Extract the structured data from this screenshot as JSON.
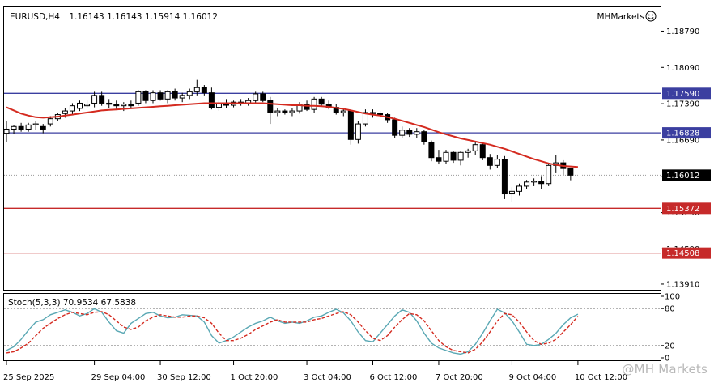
{
  "header": {
    "symbol": "EURUSD,H4",
    "ohlc": "1.16143 1.16143 1.15914 1.16012",
    "brand": "MHMarkets"
  },
  "watermark": "@MH Markets",
  "chart_data": [
    {
      "type": "candlestick",
      "title": "EURUSD,H4",
      "ylim": [
        1.138,
        1.1925
      ],
      "y_ticks": [
        "1.18790",
        "1.18090",
        "1.17390",
        "1.16690",
        "1.15990",
        "1.15290",
        "1.14590",
        "1.13910"
      ],
      "y_tick_values": [
        1.1879,
        1.1809,
        1.1739,
        1.1669,
        1.1599,
        1.1529,
        1.1459,
        1.1391
      ],
      "x_labels": [
        "25 Sep 2025",
        "29 Sep 04:00",
        "30 Sep 12:00",
        "1 Oct 20:00",
        "3 Oct 04:00",
        "6 Oct 12:00",
        "7 Oct 20:00",
        "9 Oct 04:00",
        "10 Oct 12:00"
      ],
      "x_label_bars": [
        0,
        12,
        21,
        31,
        41,
        50,
        59,
        69,
        78
      ],
      "candles": [
        [
          1.1682,
          1.1705,
          1.1665,
          1.169
        ],
        [
          1.169,
          1.1698,
          1.168,
          1.1695
        ],
        [
          1.1695,
          1.1702,
          1.1685,
          1.169
        ],
        [
          1.169,
          1.1702,
          1.1685,
          1.1698
        ],
        [
          1.1698,
          1.1705,
          1.1688,
          1.17
        ],
        [
          1.1695,
          1.17,
          1.1682,
          1.169
        ],
        [
          1.17,
          1.1715,
          1.1695,
          1.171
        ],
        [
          1.171,
          1.1722,
          1.1705,
          1.1718
        ],
        [
          1.172,
          1.173,
          1.1712,
          1.1725
        ],
        [
          1.1725,
          1.174,
          1.1718,
          1.1735
        ],
        [
          1.173,
          1.1745,
          1.1725,
          1.174
        ],
        [
          1.1735,
          1.1745,
          1.173,
          1.1738
        ],
        [
          1.174,
          1.1762,
          1.1732,
          1.1755
        ],
        [
          1.1755,
          1.1762,
          1.1735,
          1.174
        ],
        [
          1.174,
          1.1748,
          1.173,
          1.1738
        ],
        [
          1.1738,
          1.1745,
          1.1728,
          1.1735
        ],
        [
          1.1735,
          1.1742,
          1.1725,
          1.1738
        ],
        [
          1.1738,
          1.1745,
          1.173,
          1.1735
        ],
        [
          1.174,
          1.1765,
          1.1735,
          1.1762
        ],
        [
          1.1762,
          1.1765,
          1.174,
          1.1745
        ],
        [
          1.1745,
          1.1765,
          1.174,
          1.176
        ],
        [
          1.176,
          1.1765,
          1.1745,
          1.1748
        ],
        [
          1.1748,
          1.1765,
          1.174,
          1.1762
        ],
        [
          1.1762,
          1.1768,
          1.1745,
          1.175
        ],
        [
          1.175,
          1.176,
          1.1742,
          1.1755
        ],
        [
          1.1755,
          1.1768,
          1.1748,
          1.1762
        ],
        [
          1.1762,
          1.1785,
          1.1755,
          1.177
        ],
        [
          1.177,
          1.1775,
          1.1755,
          1.176
        ],
        [
          1.176,
          1.177,
          1.1728,
          1.1732
        ],
        [
          1.1732,
          1.1745,
          1.1725,
          1.174
        ],
        [
          1.174,
          1.1748,
          1.173,
          1.1736
        ],
        [
          1.1736,
          1.1745,
          1.1732,
          1.1742
        ],
        [
          1.1742,
          1.1748,
          1.1735,
          1.174
        ],
        [
          1.174,
          1.175,
          1.1735,
          1.1745
        ],
        [
          1.1745,
          1.1762,
          1.174,
          1.1758
        ],
        [
          1.1758,
          1.1762,
          1.1742,
          1.1745
        ],
        [
          1.1745,
          1.1752,
          1.17,
          1.1722
        ],
        [
          1.1722,
          1.173,
          1.1715,
          1.1725
        ],
        [
          1.1725,
          1.1728,
          1.1718,
          1.1722
        ],
        [
          1.1722,
          1.173,
          1.1715,
          1.1725
        ],
        [
          1.1725,
          1.1742,
          1.172,
          1.1738
        ],
        [
          1.1738,
          1.1745,
          1.1725,
          1.1728
        ],
        [
          1.1728,
          1.1752,
          1.1722,
          1.1748
        ],
        [
          1.1748,
          1.1752,
          1.1735,
          1.1738
        ],
        [
          1.1738,
          1.1745,
          1.1728,
          1.1732
        ],
        [
          1.1732,
          1.1738,
          1.1718,
          1.1722
        ],
        [
          1.1722,
          1.173,
          1.1715,
          1.1725
        ],
        [
          1.1725,
          1.1728,
          1.166,
          1.167
        ],
        [
          1.167,
          1.1705,
          1.1662,
          1.17
        ],
        [
          1.17,
          1.1728,
          1.1695,
          1.1722
        ],
        [
          1.1722,
          1.1728,
          1.1712,
          1.172
        ],
        [
          1.172,
          1.1725,
          1.1712,
          1.1718
        ],
        [
          1.1718,
          1.1722,
          1.1702,
          1.1708
        ],
        [
          1.1708,
          1.1712,
          1.1672,
          1.1678
        ],
        [
          1.1678,
          1.1695,
          1.1672,
          1.1688
        ],
        [
          1.1688,
          1.1692,
          1.1675,
          1.168
        ],
        [
          1.168,
          1.1692,
          1.1672,
          1.1685
        ],
        [
          1.1685,
          1.1688,
          1.166,
          1.1665
        ],
        [
          1.1665,
          1.1668,
          1.1628,
          1.1635
        ],
        [
          1.1635,
          1.165,
          1.1622,
          1.1628
        ],
        [
          1.1628,
          1.165,
          1.1622,
          1.1645
        ],
        [
          1.1645,
          1.1648,
          1.1625,
          1.163
        ],
        [
          1.163,
          1.1648,
          1.162,
          1.1645
        ],
        [
          1.1645,
          1.1652,
          1.1635,
          1.1648
        ],
        [
          1.1648,
          1.1665,
          1.164,
          1.166
        ],
        [
          1.166,
          1.1662,
          1.163,
          1.1635
        ],
        [
          1.1635,
          1.1642,
          1.1612,
          1.162
        ],
        [
          1.162,
          1.164,
          1.1615,
          1.1632
        ],
        [
          1.1632,
          1.1638,
          1.1555,
          1.1565
        ],
        [
          1.1565,
          1.1578,
          1.155,
          1.157
        ],
        [
          1.157,
          1.1585,
          1.1562,
          1.158
        ],
        [
          1.158,
          1.1592,
          1.1575,
          1.1588
        ],
        [
          1.1588,
          1.1595,
          1.158,
          1.159
        ],
        [
          1.159,
          1.1598,
          1.1575,
          1.1585
        ],
        [
          1.1585,
          1.1625,
          1.158,
          1.162
        ],
        [
          1.162,
          1.164,
          1.1605,
          1.1625
        ],
        [
          1.1625,
          1.163,
          1.16,
          1.1614
        ],
        [
          1.16143,
          1.16143,
          1.15914,
          1.16012
        ]
      ],
      "ma": [
        1.1732,
        1.1726,
        1.172,
        1.1716,
        1.1713,
        1.1712,
        1.1713,
        1.1714,
        1.1716,
        1.1718,
        1.172,
        1.1722,
        1.1724,
        1.1726,
        1.1727,
        1.1728,
        1.1729,
        1.173,
        1.1731,
        1.1732,
        1.1733,
        1.1734,
        1.1735,
        1.1736,
        1.1737,
        1.1738,
        1.1739,
        1.174,
        1.174,
        1.174,
        1.174,
        1.174,
        1.174,
        1.174,
        1.174,
        1.174,
        1.1739,
        1.1738,
        1.1737,
        1.1736,
        1.1736,
        1.1735,
        1.1735,
        1.1734,
        1.1733,
        1.1731,
        1.1729,
        1.1726,
        1.1723,
        1.172,
        1.1718,
        1.1716,
        1.1713,
        1.171,
        1.1706,
        1.1702,
        1.1698,
        1.1694,
        1.1689,
        1.1684,
        1.168,
        1.1676,
        1.1672,
        1.1669,
        1.1666,
        1.1663,
        1.166,
        1.1656,
        1.1652,
        1.1647,
        1.1642,
        1.1637,
        1.1632,
        1.1628,
        1.1624,
        1.1621,
        1.1619,
        1.1618,
        1.1617
      ],
      "ma_color": "#d42a1f",
      "hlines": [
        {
          "value": 1.1759,
          "label": "1.17590",
          "color": "#3b3fa0",
          "label_bg": "#3b3fa0"
        },
        {
          "value": 1.16828,
          "label": "1.16828",
          "color": "#3b3fa0",
          "label_bg": "#3b3fa0"
        },
        {
          "value": 1.15372,
          "label": "1.15372",
          "color": "#c62a2a",
          "label_bg": "#c62a2a"
        },
        {
          "value": 1.14508,
          "label": "1.14508",
          "color": "#c62a2a",
          "label_bg": "#c62a2a"
        }
      ],
      "current_price": {
        "value": 1.16012,
        "label": "1.16012",
        "label_bg": "#000000"
      }
    },
    {
      "type": "line",
      "title": "Stoch(5,3,3) 70.9534 67.5838",
      "ylim": [
        0,
        100
      ],
      "y_ticks": [
        "100",
        "80",
        "20",
        "0"
      ],
      "y_tick_values": [
        100,
        80,
        20,
        0
      ],
      "levels": [
        80,
        20
      ],
      "series": [
        {
          "values": [
            12,
            18,
            30,
            45,
            58,
            62,
            70,
            74,
            78,
            74,
            68,
            72,
            80,
            74,
            58,
            44,
            40,
            56,
            64,
            72,
            74,
            68,
            65,
            66,
            70,
            69,
            68,
            58,
            36,
            24,
            28,
            34,
            42,
            50,
            56,
            60,
            66,
            60,
            56,
            58,
            56,
            60,
            66,
            68,
            74,
            79,
            73,
            60,
            42,
            28,
            26,
            40,
            54,
            68,
            78,
            74,
            60,
            40,
            24,
            16,
            12,
            8,
            6,
            10,
            22,
            40,
            60,
            79,
            73,
            60,
            42,
            22,
            20,
            22,
            30,
            40,
            54,
            65,
            70.95
          ],
          "color": "#5aa8b4"
        },
        {
          "values": [
            8,
            10,
            16,
            24,
            36,
            48,
            56,
            64,
            70,
            74,
            72,
            70,
            74,
            75,
            70,
            60,
            50,
            46,
            50,
            60,
            66,
            70,
            68,
            66,
            66,
            68,
            68,
            65,
            56,
            40,
            28,
            28,
            32,
            38,
            46,
            52,
            58,
            62,
            58,
            58,
            58,
            58,
            62,
            64,
            68,
            72,
            75,
            70,
            58,
            44,
            32,
            28,
            36,
            50,
            62,
            72,
            70,
            60,
            44,
            28,
            18,
            12,
            10,
            8,
            14,
            26,
            42,
            60,
            72,
            70,
            58,
            42,
            28,
            22,
            24,
            30,
            42,
            54,
            67.58
          ],
          "color": "#d42a1f"
        }
      ]
    }
  ]
}
